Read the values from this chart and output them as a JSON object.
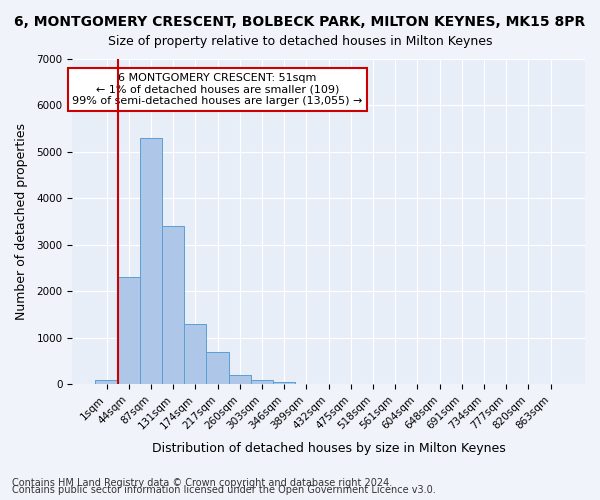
{
  "title": "6, MONTGOMERY CRESCENT, BOLBECK PARK, MILTON KEYNES, MK15 8PR",
  "subtitle": "Size of property relative to detached houses in Milton Keynes",
  "xlabel": "Distribution of detached houses by size in Milton Keynes",
  "ylabel": "Number of detached properties",
  "footnote1": "Contains HM Land Registry data © Crown copyright and database right 2024.",
  "footnote2": "Contains public sector information licensed under the Open Government Licence v3.0.",
  "annotation_title": "6 MONTGOMERY CRESCENT: 51sqm",
  "annotation_line2": "← 1% of detached houses are smaller (109)",
  "annotation_line3": "99% of semi-detached houses are larger (13,055) →",
  "bar_color": "#aec6e8",
  "bar_edge_color": "#5a9fd4",
  "marker_color": "#cc0000",
  "bins": [
    "1sqm",
    "44sqm",
    "87sqm",
    "131sqm",
    "174sqm",
    "217sqm",
    "260sqm",
    "303sqm",
    "346sqm",
    "389sqm",
    "432sqm",
    "475sqm",
    "518sqm",
    "561sqm",
    "604sqm",
    "648sqm",
    "691sqm",
    "734sqm",
    "777sqm",
    "820sqm",
    "863sqm"
  ],
  "values": [
    100,
    2300,
    5300,
    3400,
    1300,
    700,
    200,
    100,
    50,
    10,
    2,
    1,
    0,
    0,
    0,
    0,
    0,
    0,
    0,
    0,
    0
  ],
  "ylim": [
    0,
    7000
  ],
  "yticks": [
    0,
    1000,
    2000,
    3000,
    4000,
    5000,
    6000,
    7000
  ],
  "background_color": "#f0f4fa",
  "plot_background": "#e8eef8",
  "grid_color": "#ffffff",
  "title_fontsize": 10,
  "subtitle_fontsize": 9,
  "axis_label_fontsize": 9,
  "tick_fontsize": 7.5,
  "annotation_fontsize": 8,
  "footnote_fontsize": 7
}
